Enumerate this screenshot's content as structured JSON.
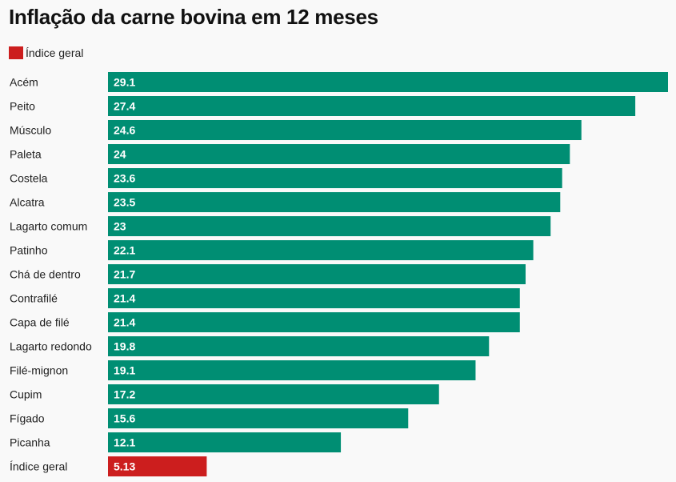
{
  "chart_data": {
    "type": "bar",
    "orientation": "horizontal",
    "title": "Inflação da carne bovina em 12 meses",
    "legend": [
      {
        "label": "Índice geral",
        "color": "#cc1e1e"
      }
    ],
    "categories": [
      "Acém",
      "Peito",
      "Músculo",
      "Paleta",
      "Costela",
      "Alcatra",
      "Lagarto comum",
      "Patinho",
      "Chá de dentro",
      "Contrafilé",
      "Capa de filé",
      "Lagarto redondo",
      "Filé-mignon",
      "Cupim",
      "Fígado",
      "Picanha",
      "Índice geral"
    ],
    "values": [
      29.1,
      27.4,
      24.6,
      24,
      23.6,
      23.5,
      23,
      22.1,
      21.7,
      21.4,
      21.4,
      19.8,
      19.1,
      17.2,
      15.6,
      12.1,
      5.13
    ],
    "value_labels": [
      "29.1",
      "27.4",
      "24.6",
      "24",
      "23.6",
      "23.5",
      "23",
      "22.1",
      "21.7",
      "21.4",
      "21.4",
      "19.8",
      "19.1",
      "17.2",
      "15.6",
      "12.1",
      "5.13"
    ],
    "highlight": "Índice geral",
    "colors": {
      "bar": "#008e73",
      "highlight": "#cc1e1e"
    },
    "xlim": [
      0,
      29.1
    ],
    "grid": false,
    "legend_position": "top-left"
  }
}
